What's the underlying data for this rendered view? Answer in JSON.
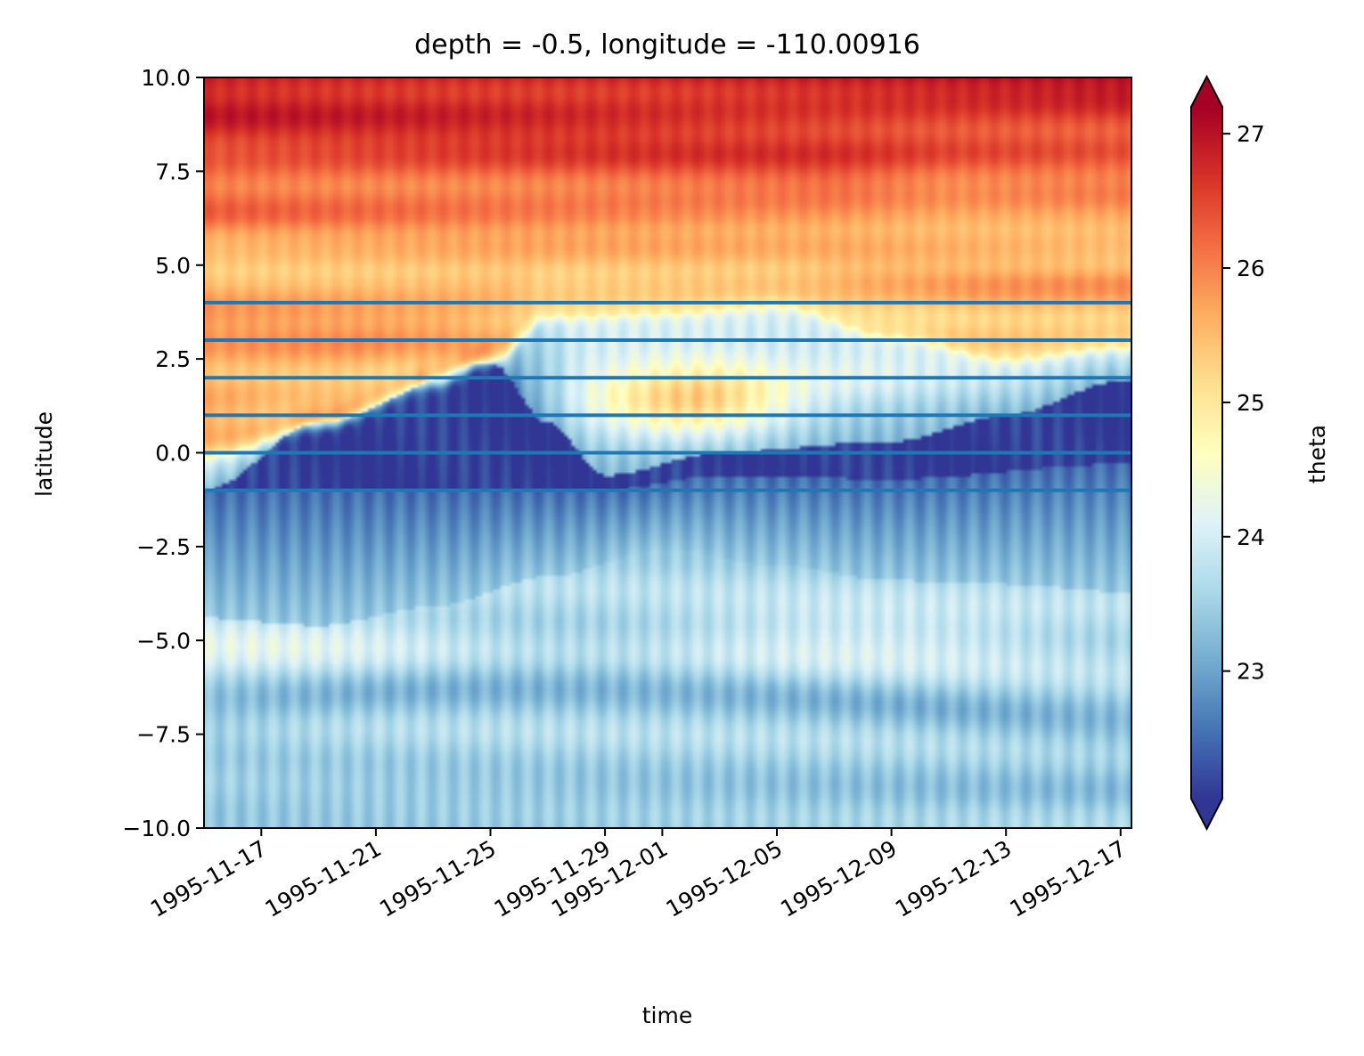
{
  "chart_data": {
    "type": "heatmap",
    "title": "depth = -0.5, longitude = -110.00916",
    "xlabel": "time",
    "ylabel": "latitude",
    "colorbar_label": "theta",
    "colormap": "RdYlBu_r",
    "colormap_stops": [
      "#313695",
      "#4575b4",
      "#74add1",
      "#abd9e9",
      "#e0f3f8",
      "#ffffbf",
      "#fee090",
      "#fdae61",
      "#f46d43",
      "#d73027",
      "#a50026"
    ],
    "value_range": [
      22.05,
      27.2
    ],
    "colorbar_extend": "both",
    "xlim": [
      "1995-11-15",
      "1995-12-17"
    ],
    "ylim": [
      -10.0,
      10.0
    ],
    "x_ticks": [
      "1995-11-17",
      "1995-11-21",
      "1995-11-25",
      "1995-11-29",
      "1995-12-01",
      "1995-12-05",
      "1995-12-09",
      "1995-12-13",
      "1995-12-17"
    ],
    "y_ticks": [
      10.0,
      7.5,
      5.0,
      2.5,
      0.0,
      -2.5,
      -5.0,
      -7.5,
      -10.0
    ],
    "y_tick_labels": [
      "10.0",
      "7.5",
      "5.0",
      "2.5",
      "0.0",
      "−2.5",
      "−5.0",
      "−7.5",
      "−10.0"
    ],
    "colorbar_ticks": [
      23,
      24,
      25,
      26,
      27
    ],
    "colorbar_tick_labels": [
      "23",
      "24",
      "25",
      "26",
      "27"
    ],
    "hlines": {
      "latitudes": [
        4,
        3,
        2,
        1,
        0,
        -1
      ],
      "color": "#1f77b4"
    },
    "features": {
      "cold_tongue_northern_edge": [
        {
          "date": "1995-11-15",
          "lat": 0.0
        },
        {
          "date": "1995-11-19",
          "lat": 0.8
        },
        {
          "date": "1995-11-23",
          "lat": 1.9
        },
        {
          "date": "1995-11-25",
          "lat": 2.5
        },
        {
          "date": "1995-11-27",
          "lat": 3.7
        },
        {
          "date": "1995-12-01",
          "lat": 3.8
        },
        {
          "date": "1995-12-05",
          "lat": 4.0
        },
        {
          "date": "1995-12-09",
          "lat": 3.2
        },
        {
          "date": "1995-12-13",
          "lat": 2.6
        },
        {
          "date": "1995-12-17",
          "lat": 2.9
        }
      ],
      "dark_core_northern_edge": [
        {
          "date": "1995-11-15",
          "lat": -1.0
        },
        {
          "date": "1995-11-19",
          "lat": 0.8
        },
        {
          "date": "1995-11-25",
          "lat": 2.4
        },
        {
          "date": "1995-11-27",
          "lat": 0.8
        },
        {
          "date": "1995-11-29",
          "lat": -0.6
        },
        {
          "date": "1995-12-03",
          "lat": 0.0
        },
        {
          "date": "1995-12-09",
          "lat": 0.3
        },
        {
          "date": "1995-12-13",
          "lat": 1.0
        },
        {
          "date": "1995-12-17",
          "lat": 1.9
        }
      ],
      "dark_core_southern_edge": [
        {
          "date": "1995-11-15",
          "lat": -1.0
        },
        {
          "date": "1995-11-25",
          "lat": -1.0
        },
        {
          "date": "1995-11-29",
          "lat": -1.0
        },
        {
          "date": "1995-12-03",
          "lat": -0.6
        },
        {
          "date": "1995-12-09",
          "lat": -0.7
        },
        {
          "date": "1995-12-17",
          "lat": -0.3
        }
      ],
      "cool_band_southern_edge": [
        {
          "date": "1995-11-15",
          "lat": -4.4
        },
        {
          "date": "1995-11-19",
          "lat": -4.6
        },
        {
          "date": "1995-11-23",
          "lat": -4.1
        },
        {
          "date": "1995-11-27",
          "lat": -3.3
        },
        {
          "date": "1995-12-01",
          "lat": -2.6
        },
        {
          "date": "1995-12-05",
          "lat": -3.0
        },
        {
          "date": "1995-12-09",
          "lat": -3.4
        },
        {
          "date": "1995-12-13",
          "lat": -3.5
        },
        {
          "date": "1995-12-17",
          "lat": -3.7
        }
      ],
      "warm_patch_center": {
        "date": "1995-12-02",
        "lat": 1.4
      },
      "warm_south_band_lat": -5.0
    }
  }
}
